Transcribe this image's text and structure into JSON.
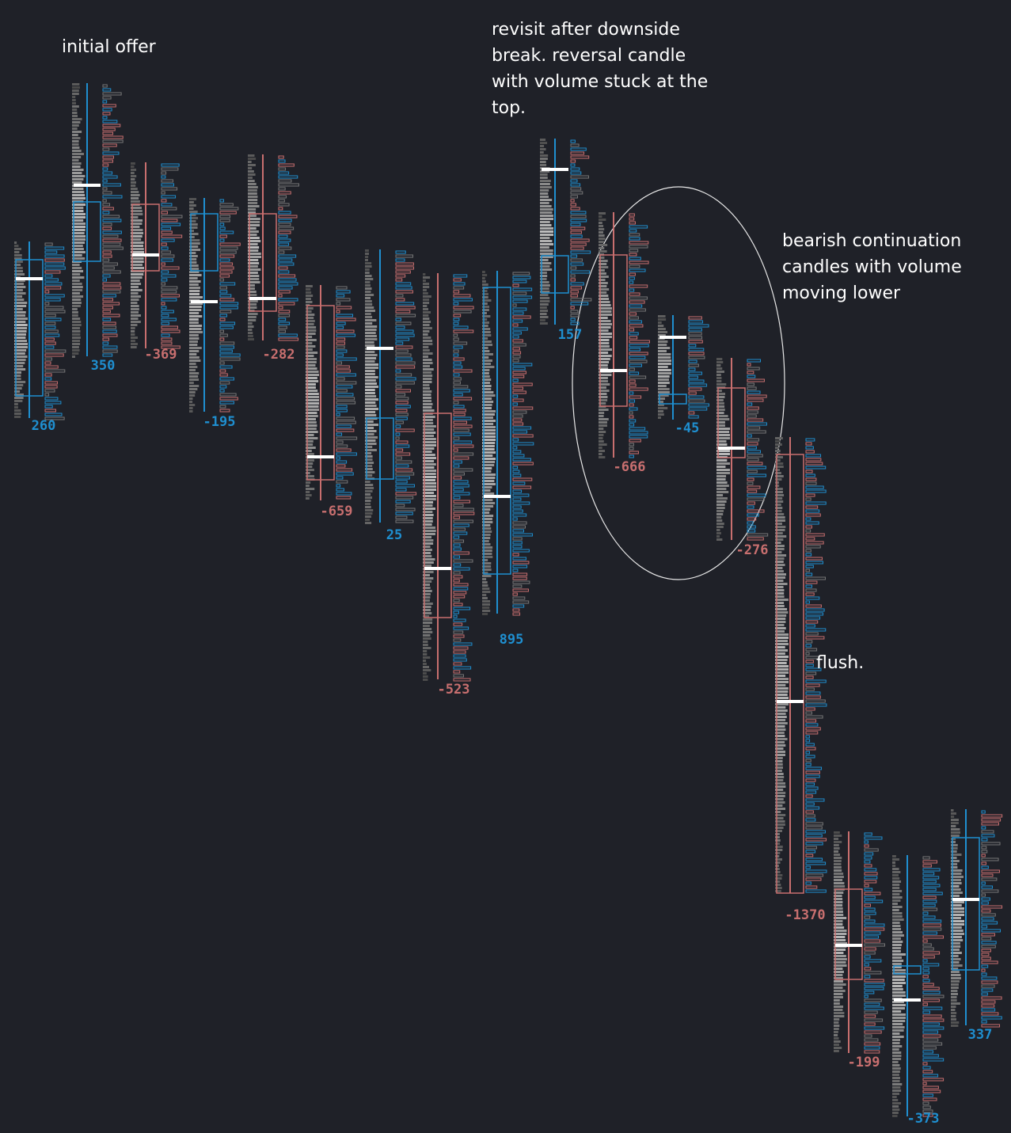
{
  "chart_data": {
    "type": "footprint",
    "annotations": [
      {
        "lines": [
          "initial offer"
        ]
      },
      {
        "lines": [
          "revisit after downside",
          "break. reversal candle",
          "with volume stuck at the",
          "top."
        ]
      },
      {
        "lines": [
          "bearish continuation",
          "candles with volume",
          "moving lower"
        ]
      },
      {
        "lines": [
          "flush."
        ]
      }
    ],
    "candles": [
      {
        "delta": 260
      },
      {
        "delta": 350
      },
      {
        "delta": -369
      },
      {
        "delta": -195
      },
      {
        "delta": -282
      },
      {
        "delta": -659
      },
      {
        "delta": 25
      },
      {
        "delta": -523
      },
      {
        "delta": 895
      },
      {
        "delta": 157
      },
      {
        "delta": -666
      },
      {
        "delta": -45
      },
      {
        "delta": -276
      },
      {
        "delta": -1370
      },
      {
        "delta": -199
      },
      {
        "delta": -373
      },
      {
        "delta": 337
      }
    ],
    "colors": {
      "up": "#1f8fd0",
      "down": "#c86f6f"
    }
  }
}
